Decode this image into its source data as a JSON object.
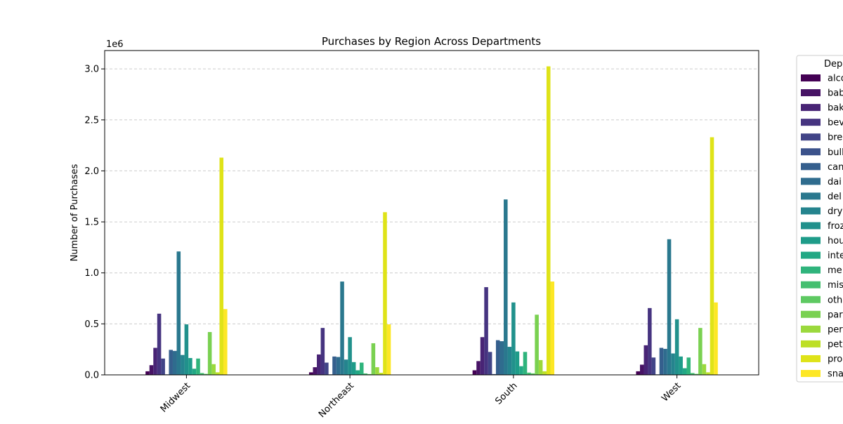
{
  "chart_data": {
    "type": "bar",
    "title": "Purchases by Region Across Departments",
    "xlabel": "",
    "ylabel": "Number of Purchases",
    "y_offset_label": "1e6",
    "ylim": [
      0,
      3.18
    ],
    "y_ticks": [
      "0.0",
      "0.5",
      "1.0",
      "1.5",
      "2.0",
      "2.5",
      "3.0"
    ],
    "y_tick_values": [
      0,
      0.5,
      1.0,
      1.5,
      2.0,
      2.5,
      3.0
    ],
    "grid": "y-dashed",
    "legend_title": "Dep",
    "legend_position": "right (outside, clipped)",
    "categories": [
      "Midwest",
      "Northeast",
      "South",
      "West"
    ],
    "series": [
      {
        "name": "alco",
        "color": "#440154",
        "values": [
          0.035,
          0.025,
          0.045,
          0.035
        ]
      },
      {
        "name": "bab",
        "color": "#471365",
        "values": [
          0.095,
          0.075,
          0.135,
          0.1
        ]
      },
      {
        "name": "bak",
        "color": "#482475",
        "values": [
          0.265,
          0.2,
          0.37,
          0.29
        ]
      },
      {
        "name": "bev",
        "color": "#463480",
        "values": [
          0.6,
          0.46,
          0.86,
          0.655
        ]
      },
      {
        "name": "bre",
        "color": "#414487",
        "values": [
          0.16,
          0.12,
          0.225,
          0.17
        ]
      },
      {
        "name": "bull",
        "color": "#3b528b",
        "values": [
          0.005,
          0.005,
          0.008,
          0.005
        ]
      },
      {
        "name": "can",
        "color": "#355f8d",
        "values": [
          0.245,
          0.18,
          0.34,
          0.265
        ]
      },
      {
        "name": "dai",
        "color": "#2f6c8e",
        "values": [
          0.235,
          0.175,
          0.33,
          0.255
        ]
      },
      {
        "name": "del",
        "color": "#2a788e",
        "values": [
          1.21,
          0.915,
          1.72,
          1.33
        ]
      },
      {
        "name": "dry",
        "color": "#25848e",
        "values": [
          0.195,
          0.15,
          0.275,
          0.21
        ]
      },
      {
        "name": "froz",
        "color": "#21918c",
        "values": [
          0.495,
          0.37,
          0.71,
          0.545
        ]
      },
      {
        "name": "hou",
        "color": "#1e9c89",
        "values": [
          0.165,
          0.125,
          0.23,
          0.18
        ]
      },
      {
        "name": "inte",
        "color": "#22a884",
        "values": [
          0.06,
          0.045,
          0.085,
          0.065
        ]
      },
      {
        "name": "me",
        "color": "#2fb47c",
        "values": [
          0.16,
          0.12,
          0.225,
          0.17
        ]
      },
      {
        "name": "mis",
        "color": "#44bf70",
        "values": [
          0.018,
          0.014,
          0.022,
          0.018
        ]
      },
      {
        "name": "oth",
        "color": "#5ec962",
        "values": [
          0.01,
          0.008,
          0.015,
          0.01
        ]
      },
      {
        "name": "par",
        "color": "#7ad151",
        "values": [
          0.42,
          0.31,
          0.59,
          0.46
        ]
      },
      {
        "name": "per",
        "color": "#9bd93c",
        "values": [
          0.105,
          0.075,
          0.145,
          0.105
        ]
      },
      {
        "name": "pet",
        "color": "#bddf26",
        "values": [
          0.025,
          0.02,
          0.035,
          0.025
        ]
      },
      {
        "name": "pro",
        "color": "#dfe318",
        "values": [
          2.13,
          1.595,
          3.025,
          2.33
        ]
      },
      {
        "name": "sna",
        "color": "#fde725",
        "values": [
          0.645,
          0.495,
          0.915,
          0.71
        ]
      }
    ]
  }
}
